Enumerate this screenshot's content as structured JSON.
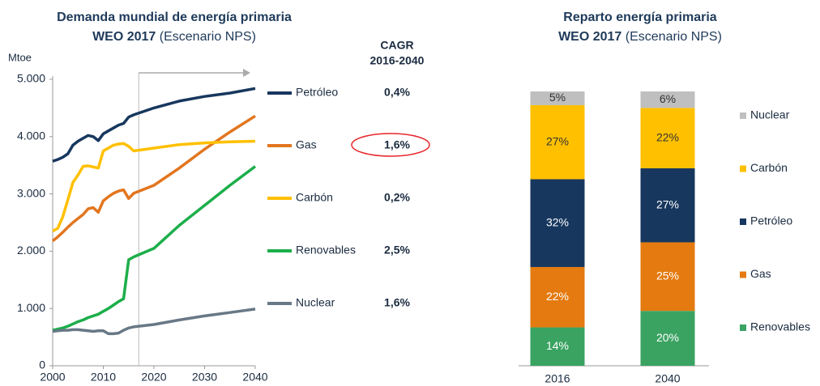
{
  "chart_data": [
    {
      "type": "line",
      "title": "Demanda mundial de energía primaria",
      "subtitle_bold": "WEO 2017",
      "subtitle": "(Escenario NPS)",
      "ylabel": "Mtoe",
      "cagr_title": "CAGR",
      "cagr_subtitle": "2016-2040",
      "highlight": "Gas",
      "forecast_from": 2017,
      "xlim": [
        2000,
        2040
      ],
      "xticks": [
        2000,
        2010,
        2020,
        2030,
        2040
      ],
      "ylim": [
        0,
        5000
      ],
      "yticks": [
        0,
        {
          "value": 1000,
          "label": "1.000"
        },
        {
          "value": 2000,
          "label": "2.000"
        },
        {
          "value": 3000,
          "label": "3.000"
        },
        {
          "value": 4000,
          "label": "4.000"
        },
        {
          "value": 5000,
          "label": "5.000"
        }
      ],
      "x": [
        2000,
        2001,
        2002,
        2003,
        2004,
        2005,
        2006,
        2007,
        2008,
        2009,
        2010,
        2011,
        2012,
        2013,
        2014,
        2015,
        2016,
        2020,
        2025,
        2030,
        2035,
        2040
      ],
      "series": [
        {
          "name": "Petróleo",
          "color": "#17375e",
          "cagr": "0,4%",
          "values": [
            3570,
            3600,
            3640,
            3700,
            3850,
            3920,
            3970,
            4020,
            4000,
            3930,
            4050,
            4100,
            4150,
            4200,
            4230,
            4340,
            4380,
            4500,
            4620,
            4700,
            4760,
            4840
          ]
        },
        {
          "name": "Gas",
          "color": "#e2761f",
          "cagr": "1,6%",
          "values": [
            2180,
            2250,
            2330,
            2420,
            2500,
            2570,
            2640,
            2740,
            2760,
            2680,
            2880,
            2950,
            3010,
            3050,
            3070,
            2920,
            3010,
            3150,
            3450,
            3780,
            4080,
            4360
          ]
        },
        {
          "name": "Carbón",
          "color": "#ffc000",
          "cagr": "0,2%",
          "values": [
            2350,
            2400,
            2600,
            2900,
            3200,
            3330,
            3480,
            3490,
            3470,
            3450,
            3750,
            3800,
            3850,
            3870,
            3880,
            3830,
            3750,
            3800,
            3860,
            3890,
            3910,
            3920
          ]
        },
        {
          "name": "Renovables",
          "color": "#1cae4a",
          "cagr": "2,5%",
          "values": [
            620,
            640,
            660,
            690,
            730,
            770,
            800,
            840,
            870,
            900,
            950,
            1000,
            1060,
            1120,
            1170,
            1850,
            1900,
            2050,
            2450,
            2800,
            3150,
            3480
          ]
        },
        {
          "name": "Nuclear",
          "color": "#687886",
          "cagr": "1,6%",
          "values": [
            600,
            610,
            620,
            620,
            630,
            630,
            620,
            610,
            600,
            610,
            610,
            560,
            560,
            570,
            620,
            660,
            680,
            720,
            800,
            870,
            930,
            990
          ]
        }
      ]
    },
    {
      "type": "stacked_bar",
      "title": "Reparto energía primaria",
      "subtitle_bold": "WEO 2017",
      "subtitle": "(Escenario NPS)",
      "categories": [
        "2016",
        "2040"
      ],
      "ylim": [
        0,
        100
      ],
      "series": [
        {
          "name": "Renovables",
          "color": "#3aa362",
          "values": [
            14,
            20
          ],
          "value_labels": [
            "14%",
            "20%"
          ]
        },
        {
          "name": "Gas",
          "color": "#e47a10",
          "values": [
            22,
            25
          ],
          "value_labels": [
            "22%",
            "25%"
          ]
        },
        {
          "name": "Petróleo",
          "color": "#17375e",
          "values": [
            32,
            27
          ],
          "value_labels": [
            "32%",
            "27%"
          ]
        },
        {
          "name": "Carbón",
          "color": "#ffc000",
          "values": [
            27,
            22
          ],
          "value_labels": [
            "27%",
            "22%"
          ]
        },
        {
          "name": "Nuclear",
          "color": "#bfbfbf",
          "values": [
            5,
            6
          ],
          "value_labels": [
            "5%",
            "6%"
          ]
        }
      ]
    }
  ]
}
